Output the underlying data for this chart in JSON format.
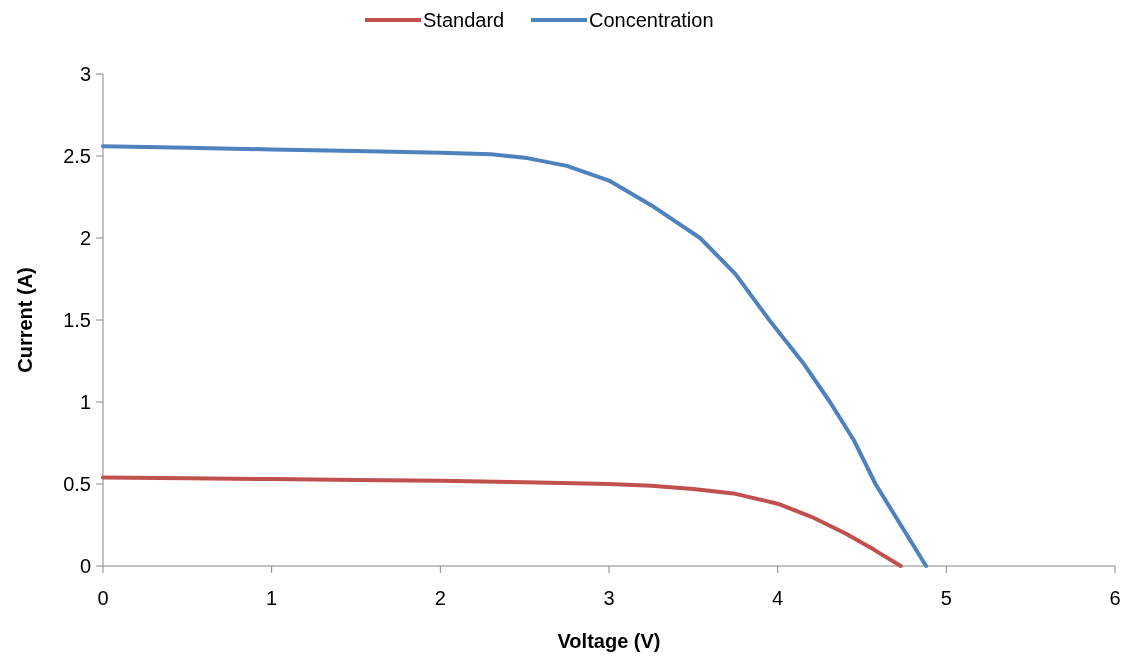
{
  "chart_data": {
    "type": "line",
    "xlabel": "Voltage (V)",
    "ylabel": "Current (A)",
    "xlim": [
      0,
      6
    ],
    "xticks": [
      0,
      1,
      2,
      3,
      4,
      5,
      6
    ],
    "ylim": [
      0,
      3
    ],
    "yticks": [
      0,
      0.5,
      1,
      1.5,
      2,
      2.5,
      3
    ],
    "grid": false,
    "legend": "top",
    "marker": "none",
    "line_style": "solid",
    "series": [
      {
        "name": "Standard",
        "color": "#c0504d",
        "x": [
          0,
          0.5,
          1,
          1.5,
          2,
          2.5,
          3,
          3.25,
          3.5,
          3.75,
          4,
          4.2,
          4.4,
          4.57,
          4.73
        ],
        "values": [
          0.54,
          0.535,
          0.53,
          0.525,
          0.52,
          0.51,
          0.5,
          0.49,
          0.47,
          0.44,
          0.38,
          0.3,
          0.2,
          0.1,
          0
        ]
      },
      {
        "name": "Concentration",
        "color": "#4f81bd",
        "x": [
          0,
          0.5,
          1,
          1.5,
          2,
          2.3,
          2.5,
          2.75,
          3,
          3.25,
          3.54,
          3.75,
          3.95,
          4.15,
          4.31,
          4.45,
          4.58,
          4.73,
          4.88
        ],
        "values": [
          2.56,
          2.55,
          2.54,
          2.53,
          2.52,
          2.51,
          2.49,
          2.44,
          2.35,
          2.2,
          2.0,
          1.78,
          1.5,
          1.24,
          1.0,
          0.77,
          0.5,
          0.25,
          0
        ]
      }
    ]
  }
}
